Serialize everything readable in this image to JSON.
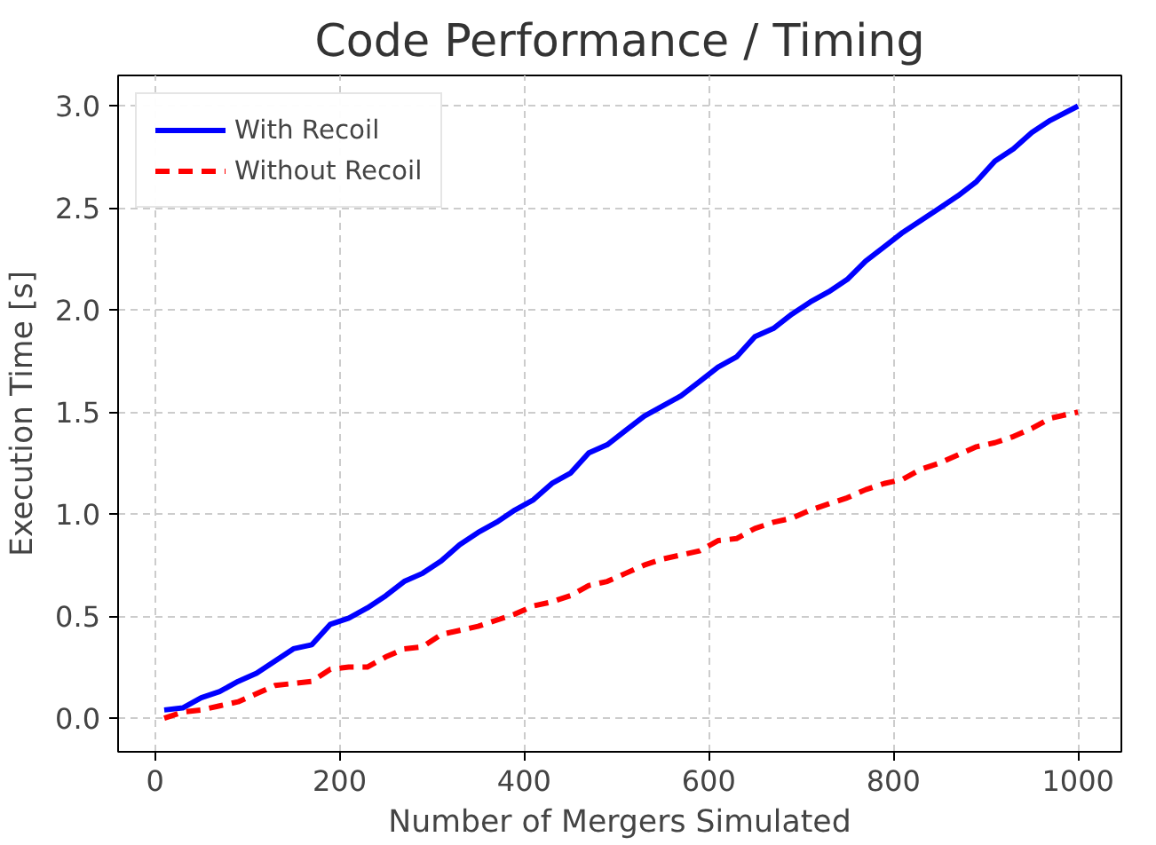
{
  "chart_data": {
    "type": "line",
    "title": "Code Performance / Timing",
    "xlabel": "Number of Mergers Simulated",
    "ylabel": "Execution Time [s]",
    "x": [
      10,
      30,
      50,
      70,
      90,
      110,
      130,
      150,
      170,
      190,
      210,
      230,
      250,
      270,
      290,
      310,
      330,
      350,
      370,
      390,
      410,
      430,
      450,
      470,
      490,
      510,
      530,
      550,
      570,
      590,
      610,
      630,
      650,
      670,
      690,
      710,
      730,
      750,
      770,
      790,
      810,
      830,
      850,
      870,
      890,
      910,
      930,
      950,
      970,
      1000
    ],
    "series": [
      {
        "name": "With Recoil",
        "color": "#0000ff",
        "line_style": "solid",
        "values": [
          0.04,
          0.05,
          0.1,
          0.13,
          0.18,
          0.22,
          0.28,
          0.34,
          0.36,
          0.46,
          0.49,
          0.54,
          0.6,
          0.67,
          0.71,
          0.77,
          0.85,
          0.91,
          0.96,
          1.02,
          1.07,
          1.15,
          1.2,
          1.3,
          1.34,
          1.41,
          1.48,
          1.53,
          1.58,
          1.65,
          1.72,
          1.77,
          1.87,
          1.91,
          1.98,
          2.04,
          2.09,
          2.15,
          2.24,
          2.31,
          2.38,
          2.44,
          2.5,
          2.56,
          2.63,
          2.73,
          2.79,
          2.87,
          2.93,
          3.0
        ]
      },
      {
        "name": "Without Recoil",
        "color": "#ff0000",
        "line_style": "dashed",
        "values": [
          0.0,
          0.03,
          0.04,
          0.06,
          0.08,
          0.12,
          0.16,
          0.17,
          0.18,
          0.24,
          0.25,
          0.25,
          0.3,
          0.34,
          0.35,
          0.41,
          0.43,
          0.45,
          0.48,
          0.51,
          0.55,
          0.57,
          0.6,
          0.65,
          0.67,
          0.71,
          0.75,
          0.78,
          0.8,
          0.82,
          0.87,
          0.88,
          0.93,
          0.96,
          0.98,
          1.02,
          1.05,
          1.08,
          1.12,
          1.15,
          1.17,
          1.22,
          1.25,
          1.29,
          1.33,
          1.35,
          1.38,
          1.42,
          1.47,
          1.5
        ]
      }
    ],
    "xlim": [
      -40,
      1047
    ],
    "ylim": [
      -0.165,
      3.15
    ],
    "xticks": [
      0,
      200,
      400,
      600,
      800,
      1000
    ],
    "yticks": [
      {
        "value": 0,
        "label": "0.0"
      },
      {
        "value": 0.5,
        "label": "0.5"
      },
      {
        "value": 1,
        "label": "1.0"
      },
      {
        "value": 1.5,
        "label": "1.5"
      },
      {
        "value": 2,
        "label": "2.0"
      },
      {
        "value": 2.5,
        "label": "2.5"
      },
      {
        "value": 3,
        "label": "3.0"
      }
    ],
    "grid": true,
    "legend": "top left",
    "marker": "none"
  }
}
